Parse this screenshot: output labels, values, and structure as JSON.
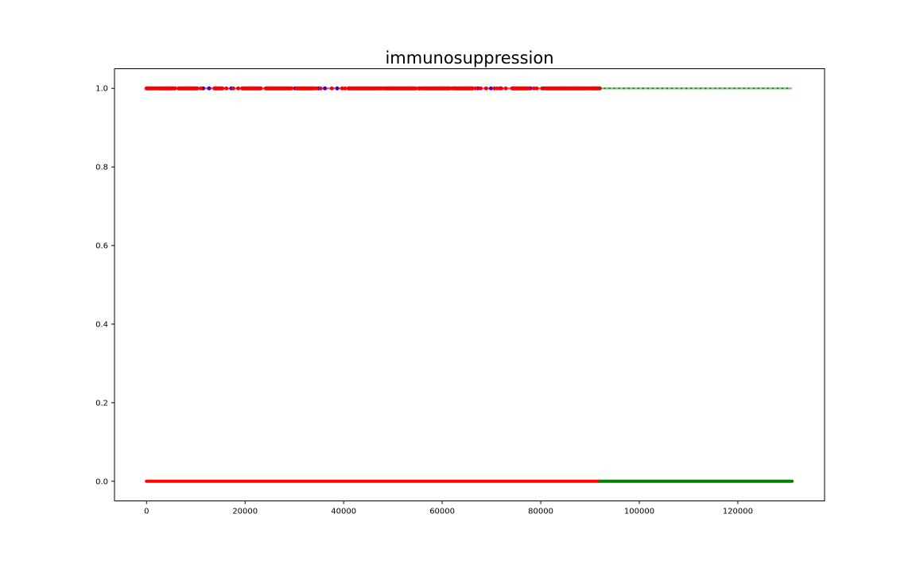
{
  "chart_data": {
    "type": "scatter",
    "title": "immunosuppression",
    "xlabel": "",
    "ylabel": "",
    "xlim": [
      -6500,
      137600
    ],
    "ylim": [
      -0.05,
      1.05
    ],
    "x_ticks": [
      0,
      20000,
      40000,
      60000,
      80000,
      100000,
      120000
    ],
    "x_tick_labels": [
      "0",
      "20000",
      "40000",
      "60000",
      "80000",
      "100000",
      "120000"
    ],
    "y_ticks": [
      0.0,
      0.2,
      0.4,
      0.6,
      0.8,
      1.0
    ],
    "y_tick_labels": [
      "0.0",
      "0.2",
      "0.4",
      "0.6",
      "0.8",
      "1.0"
    ],
    "grid": false,
    "legend": "none",
    "series": [
      {
        "color": "#ff0000",
        "marker": "band",
        "y": 0,
        "x_range": [
          0,
          92000
        ]
      },
      {
        "color": "#008000",
        "marker": "band",
        "y": 0,
        "x_range": [
          92000,
          131000
        ]
      },
      {
        "color": "#0000ff",
        "marker": "dots",
        "y": 1,
        "x_range": [
          0,
          92000
        ],
        "x": [
          1200,
          4300,
          8900,
          11500,
          12700,
          13900,
          17200,
          21800,
          25600,
          30100,
          34900,
          36200,
          38700,
          41200,
          47600,
          49800,
          53100,
          55400,
          59700,
          62600,
          64900,
          67300,
          69900,
          71800,
          74400,
          77900,
          80600,
          83900,
          86700,
          89400,
          91200
        ]
      },
      {
        "color": "#ff0000",
        "marker": "dots",
        "y": 1,
        "x_range": [
          0,
          92000
        ],
        "dense_ranges": [
          [
            0,
            900
          ],
          [
            1500,
            5800
          ],
          [
            6500,
            10300
          ],
          [
            13800,
            15400
          ],
          [
            19400,
            23200
          ],
          [
            24200,
            29400
          ],
          [
            30400,
            33900
          ],
          [
            41000,
            47300
          ],
          [
            48200,
            54600
          ],
          [
            55800,
            61600
          ],
          [
            62400,
            66200
          ],
          [
            74200,
            77600
          ],
          [
            81000,
            89100
          ],
          [
            89800,
            92000
          ]
        ],
        "x": [
          11000,
          16200,
          17600,
          18600,
          34400,
          35300,
          37600,
          39700,
          40300,
          47800,
          55200,
          62100,
          66800,
          67800,
          68900,
          70600,
          71200,
          72000,
          72900,
          78600,
          79200,
          80300,
          89500
        ]
      },
      {
        "color": "#008000",
        "marker": "dots",
        "y": 1,
        "x_range": [
          92000,
          131000
        ]
      }
    ]
  }
}
